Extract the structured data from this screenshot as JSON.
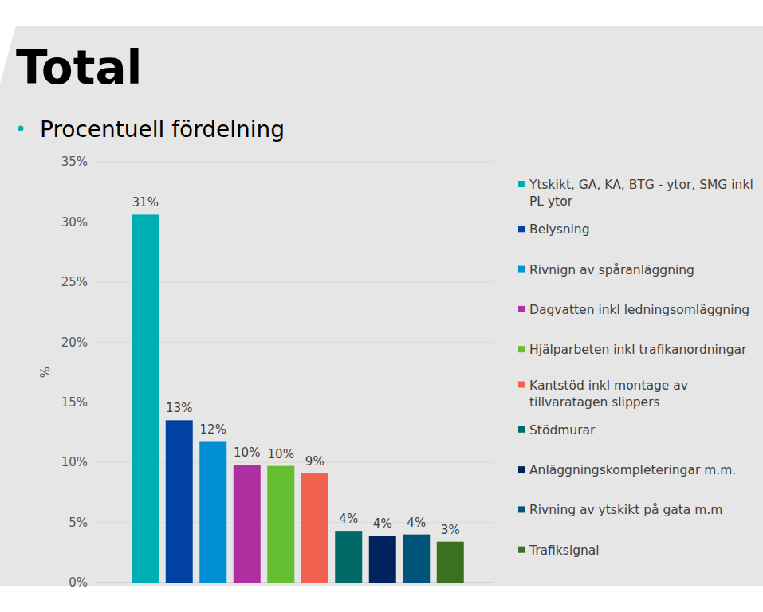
{
  "chart_data": {
    "type": "bar",
    "title": "Total",
    "subtitle": "Procentuell fördelning",
    "ylabel": "%",
    "categories": [
      "Ytskikt, GA, KA, BTG - ytor, SMG inkl PL ytor",
      "Belysning",
      "Rivnign av spåranläggning",
      "Dagvatten inkl ledningsomläggning",
      "Hjälparbeten inkl trafikanordningar",
      "Kantstöd inkl montage av tillvaratagen slippers",
      "Stödmurar",
      "Anläggningskompleteringar m.m.",
      "Rivning av ytskikt på gata m.m",
      "Trafiksignal"
    ],
    "values": [
      30.6,
      13.5,
      11.7,
      9.8,
      9.7,
      9.1,
      4.3,
      3.9,
      4.0,
      3.4
    ],
    "value_labels": [
      "31%",
      "13%",
      "12%",
      "10%",
      "10%",
      "9%",
      "4%",
      "4%",
      "4%",
      "3%"
    ],
    "colors": [
      "#00afb3",
      "#0041a3",
      "#0090d6",
      "#b02fa0",
      "#63be30",
      "#f0624f",
      "#006a67",
      "#00235e",
      "#005379",
      "#3b701f"
    ],
    "ylim": [
      0,
      35
    ],
    "yticks": [
      {
        "value": 0,
        "label": "0%"
      },
      {
        "value": 5,
        "label": "5%"
      },
      {
        "value": 10,
        "label": "10%"
      },
      {
        "value": 15,
        "label": "15%"
      },
      {
        "value": 20,
        "label": "20%"
      },
      {
        "value": 25,
        "label": "25%"
      },
      {
        "value": 30,
        "label": "30%"
      },
      {
        "value": 35,
        "label": "35%"
      }
    ],
    "grid": true,
    "legend": "right",
    "data_labels": true,
    "tick_labels": "y"
  }
}
